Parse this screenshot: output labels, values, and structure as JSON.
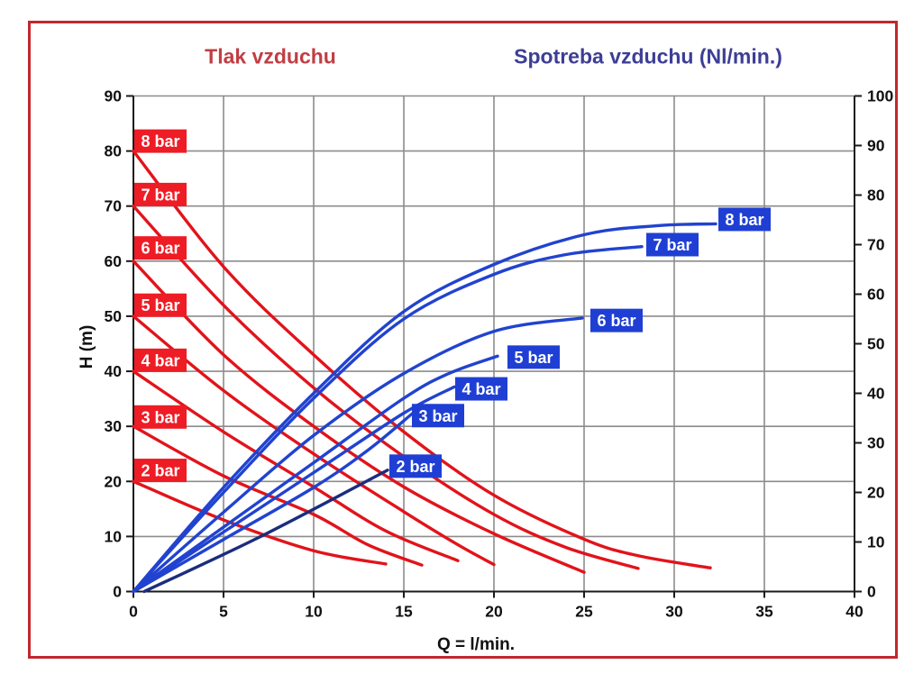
{
  "colors": {
    "frame_border": "#c0282d",
    "pressure_curve": "#e2131b",
    "consumption_curve": "#2143cf",
    "consumption_2bar_curve": "#1b2d7d",
    "pressure_label_bg": "#ee1c25",
    "consumption_label_bg": "#1f3fd4",
    "label_text": "#ffffff",
    "title_pressure": "#c03e44",
    "title_consumption": "#3d3e96",
    "grid": "#8c8c8c",
    "axis": "#1a1a1a",
    "tick_text": "#111111"
  },
  "chart_data": {
    "type": "line",
    "title_pressure": "Tlak vzduchu",
    "title_consumption": "Spotreba vzduchu (Nl/min.)",
    "x_axis": {
      "label": "Q = l/min.",
      "min": 0,
      "max": 40,
      "ticks": [
        0,
        5,
        10,
        15,
        20,
        25,
        30,
        35,
        40
      ]
    },
    "y_left_axis": {
      "label": "H (m)",
      "min": 0,
      "max": 90,
      "ticks": [
        0,
        10,
        20,
        30,
        40,
        50,
        60,
        70,
        80,
        90
      ]
    },
    "y_right_axis": {
      "label": "Spotreba vzduchu (Nl/min.)",
      "min": 0,
      "max": 100,
      "ticks": [
        0,
        10,
        20,
        30,
        40,
        50,
        60,
        70,
        80,
        90,
        100
      ]
    },
    "grid": {
      "vertical_at": [
        5,
        10,
        15,
        20,
        25,
        30,
        35,
        40
      ],
      "horizontal_at": [
        10,
        20,
        30,
        40,
        50,
        60,
        70,
        80,
        90
      ]
    },
    "pressure_curves": [
      {
        "label": "2 bar",
        "axis": "left",
        "label_center": [
          1.5,
          22.0
        ],
        "points": [
          [
            0,
            20
          ],
          [
            5,
            13
          ],
          [
            10,
            7.4
          ],
          [
            14,
            5.0
          ]
        ]
      },
      {
        "label": "3 bar",
        "axis": "left",
        "label_center": [
          1.5,
          31.7
        ],
        "points": [
          [
            0,
            30
          ],
          [
            5,
            21
          ],
          [
            10,
            14
          ],
          [
            13,
            8.5
          ],
          [
            16,
            4.8
          ]
        ]
      },
      {
        "label": "4 bar",
        "axis": "left",
        "label_center": [
          1.5,
          42.0
        ],
        "points": [
          [
            0,
            40
          ],
          [
            5,
            29
          ],
          [
            10,
            19
          ],
          [
            14,
            11
          ],
          [
            18,
            5.6
          ]
        ]
      },
      {
        "label": "5 bar",
        "axis": "left",
        "label_center": [
          1.5,
          52.0
        ],
        "points": [
          [
            0,
            50
          ],
          [
            5,
            36.5
          ],
          [
            10,
            25
          ],
          [
            15,
            14.5
          ],
          [
            18,
            8.5
          ],
          [
            20,
            4.9
          ]
        ]
      },
      {
        "label": "6 bar",
        "axis": "left",
        "label_center": [
          1.5,
          62.4
        ],
        "points": [
          [
            0,
            60
          ],
          [
            5,
            43
          ],
          [
            10,
            30
          ],
          [
            15,
            19
          ],
          [
            20,
            10.5
          ],
          [
            25,
            3.5
          ]
        ]
      },
      {
        "label": "7 bar",
        "axis": "left",
        "label_center": [
          1.5,
          72.1
        ],
        "points": [
          [
            0,
            70
          ],
          [
            5,
            52
          ],
          [
            10,
            37
          ],
          [
            15,
            24.5
          ],
          [
            20,
            14
          ],
          [
            24,
            8
          ],
          [
            28,
            4.2
          ]
        ]
      },
      {
        "label": "8 bar",
        "axis": "left",
        "label_center": [
          1.5,
          81.8
        ],
        "points": [
          [
            0,
            80
          ],
          [
            5,
            59
          ],
          [
            10,
            43
          ],
          [
            15,
            29
          ],
          [
            20,
            17.5
          ],
          [
            25,
            9.5
          ],
          [
            28,
            6.5
          ],
          [
            32,
            4.3
          ]
        ]
      }
    ],
    "consumption_curves": [
      {
        "label": "2 bar",
        "axis": "right",
        "label_center": [
          15.65,
          25.3
        ],
        "color_key": "consumption_2bar_curve",
        "points": [
          [
            0.6,
            0
          ],
          [
            7,
            11
          ],
          [
            14.1,
            24.5
          ]
        ]
      },
      {
        "label": "3 bar",
        "axis": "right",
        "label_center": [
          16.9,
          35.5
        ],
        "points": [
          [
            0,
            0
          ],
          [
            5,
            10.5
          ],
          [
            10,
            21
          ],
          [
            13,
            28.5
          ],
          [
            15.5,
            36
          ]
        ]
      },
      {
        "label": "4 bar",
        "axis": "right",
        "label_center": [
          19.3,
          40.9
        ],
        "points": [
          [
            0,
            0
          ],
          [
            5,
            12
          ],
          [
            10,
            24
          ],
          [
            15,
            36
          ],
          [
            17.8,
            41.3
          ]
        ]
      },
      {
        "label": "5 bar",
        "axis": "right",
        "label_center": [
          22.2,
          47.3
        ],
        "points": [
          [
            0,
            0
          ],
          [
            5,
            13
          ],
          [
            10,
            26
          ],
          [
            15,
            39
          ],
          [
            17.5,
            44
          ],
          [
            20.2,
            47.5
          ]
        ]
      },
      {
        "label": "6 bar",
        "axis": "right",
        "label_center": [
          26.8,
          54.7
        ],
        "points": [
          [
            0,
            0
          ],
          [
            5,
            16
          ],
          [
            10,
            31.5
          ],
          [
            15,
            44
          ],
          [
            20,
            52.5
          ],
          [
            24.9,
            55.2
          ]
        ]
      },
      {
        "label": "7 bar",
        "axis": "right",
        "label_center": [
          29.9,
          70.0
        ],
        "points": [
          [
            0,
            0
          ],
          [
            5,
            20
          ],
          [
            10,
            39
          ],
          [
            15,
            55
          ],
          [
            20,
            64
          ],
          [
            24,
            68
          ],
          [
            28.2,
            69.6
          ]
        ]
      },
      {
        "label": "8 bar",
        "axis": "right",
        "label_center": [
          33.9,
          75.1
        ],
        "points": [
          [
            0,
            0
          ],
          [
            5,
            21
          ],
          [
            10,
            40
          ],
          [
            15,
            56.5
          ],
          [
            20,
            66
          ],
          [
            25,
            72
          ],
          [
            29,
            73.8
          ],
          [
            32.3,
            74.2
          ]
        ]
      }
    ]
  }
}
